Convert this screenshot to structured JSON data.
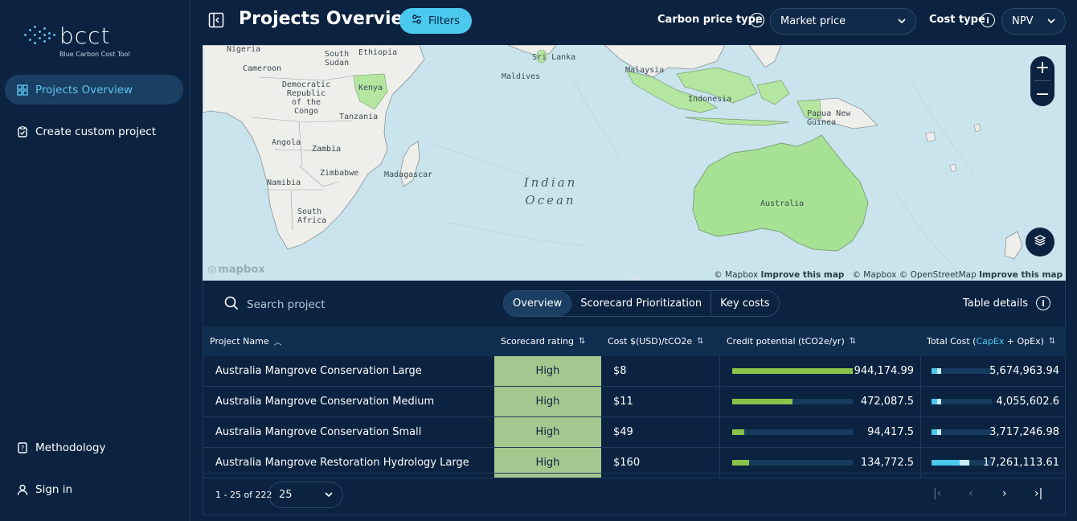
{
  "app": {
    "logo_main": "bcct",
    "logo_sub": "Blue Carbon Cost Tool"
  },
  "sidebar": {
    "items": [
      {
        "label": "Projects Overview",
        "icon": "grid-icon",
        "active": true
      },
      {
        "label": "Create custom project",
        "icon": "clipboard-icon",
        "active": false
      }
    ],
    "bottom_items": [
      {
        "label": "Methodology",
        "icon": "document-icon"
      },
      {
        "label": "Sign in",
        "icon": "user-icon"
      }
    ]
  },
  "header": {
    "title": "Projects Overview",
    "filters_label": "Filters",
    "carbon_price_label": "Carbon price type",
    "carbon_price_value": "Market price",
    "cost_type_label": "Cost type",
    "cost_type_value": "NPV"
  },
  "map": {
    "labels": {
      "nigeria": "Nigeria",
      "ethiopia": "Ethiopia",
      "south_sudan": "South Sudan",
      "cameroon": "Cameroon",
      "drc": "Democratic Republic of the Congo",
      "kenya": "Kenya",
      "tanzania": "Tanzania",
      "angola": "Angola",
      "zambia": "Zambia",
      "zimbabwe": "Zimbabwe",
      "namibia": "Namibia",
      "south_africa": "South Africa",
      "madagascar": "Madagascar",
      "sri_lanka": "Sri Lanka",
      "maldives": "Maldives",
      "malaysia": "Malaysia",
      "indonesia": "Indonesia",
      "png": "Papua New Guinea",
      "australia": "Australia",
      "ocean": "Indian Ocean"
    },
    "attribution": {
      "mapbox": "© Mapbox",
      "improve": "Improve this map",
      "osm": "© Mapbox © OpenStreetMap",
      "improve2": "Improve this map"
    },
    "logo": "mapbox",
    "highlight_color": "#9fe09a"
  },
  "table": {
    "search_placeholder": "Search project",
    "tabs": [
      "Overview",
      "Scorecard Prioritization",
      "Key costs"
    ],
    "active_tab": "Overview",
    "details_label": "Table details",
    "columns": {
      "name": "Project Name",
      "score": "Scorecard rating",
      "cost": "Cost $(USD)/tCO2e",
      "credit": "Credit potential (tCO2e/yr)",
      "total_prefix": "Total Cost (",
      "total_capex": "CapEx",
      "total_plus": " + OpEx)"
    },
    "rows": [
      {
        "name": "Australia Mangrove Conservation Large",
        "score": "High",
        "cost": "$8",
        "credit": "944,174.99",
        "credit_value": 944174.99,
        "total": "5,674,963.94",
        "total_value": 5674963.94,
        "capex_share": 0.6
      },
      {
        "name": "Australia Mangrove Conservation Medium",
        "score": "High",
        "cost": "$11",
        "credit": "472,087.5",
        "credit_value": 472087.5,
        "total": "4,055,602.6",
        "total_value": 4055602.6,
        "capex_share": 0.6
      },
      {
        "name": "Australia Mangrove Conservation Small",
        "score": "High",
        "cost": "$49",
        "credit": "94,417.5",
        "credit_value": 94417.5,
        "total": "3,717,246.98",
        "total_value": 3717246.98,
        "capex_share": 0.6
      },
      {
        "name": "Australia Mangrove Restoration Hydrology Large",
        "score": "High",
        "cost": "$160",
        "credit": "134,772.5",
        "credit_value": 134772.5,
        "total": "17,261,113.61",
        "total_value": 17261113.61,
        "capex_share": 0.75
      }
    ],
    "credit_max": 944174.99,
    "total_max": 75000000,
    "pagination": {
      "range": "1 - 25 of 222",
      "per_page": "25"
    },
    "colors": {
      "score_high": "#a6c68f",
      "credit_bar": "#8bc34a",
      "capex": "#4ac8ee",
      "opex": "#c9eef9"
    }
  }
}
